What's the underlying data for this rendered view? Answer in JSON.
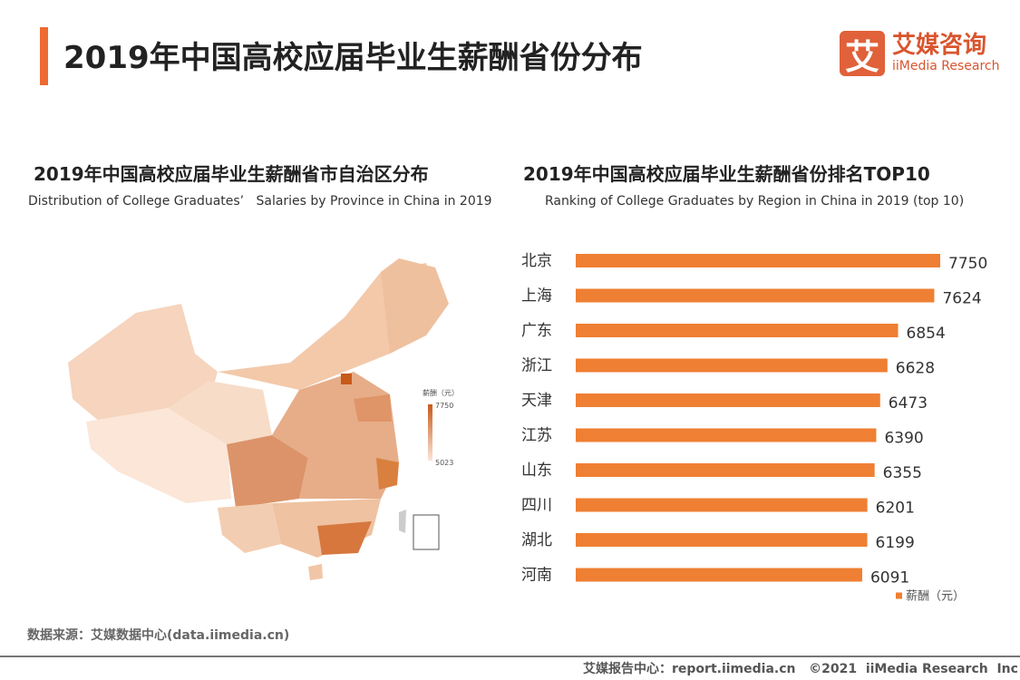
{
  "header": {
    "title": "2019年中国高校应届毕业生薪酬省份分布"
  },
  "logo": {
    "mark": "艾",
    "cn": "艾媒咨询",
    "en": "iiMedia Research"
  },
  "left": {
    "title": "2019年中国高校应届毕业生薪酬省市自治区分布",
    "subtitle": "Distribution of College Graduates’   Salaries by Province in China in 2019",
    "legend": {
      "title": "薪酬（元）",
      "max": "7750",
      "min": "5023"
    }
  },
  "right": {
    "title": "2019年中国高校应届毕业生薪酬省份排名TOP10",
    "subtitle": "Ranking of College Graduates by Region in China in 2019 (top 10)"
  },
  "chart_data": [
    {
      "type": "heatmap",
      "title": "2019年中国高校应届毕业生薪酬省市自治区分布",
      "legend_title": "薪酬（元）",
      "range": [
        5023,
        7750
      ],
      "colors": {
        "low": "#fbe6d8",
        "high": "#c85a1a"
      }
    },
    {
      "type": "bar",
      "orientation": "horizontal",
      "title": "2019年中国高校应届毕业生薪酬省份排名TOP10",
      "categories": [
        "北京",
        "上海",
        "广东",
        "浙江",
        "天津",
        "江苏",
        "山东",
        "四川",
        "湖北",
        "河南"
      ],
      "values": [
        7750,
        7624,
        6854,
        6628,
        6473,
        6390,
        6355,
        6201,
        6199,
        6091
      ],
      "series": [
        {
          "name": "薪酬（元）"
        }
      ],
      "color": "#ef7f33",
      "xlim": [
        0,
        7750
      ],
      "grid": false,
      "legend": "bottom-right"
    }
  ],
  "footer": {
    "source": "数据来源：艾媒数据中心(data.iimedia.cn)",
    "copyright": "艾媒报告中心：report.iimedia.cn   ©2021  iiMedia Research  Inc"
  }
}
